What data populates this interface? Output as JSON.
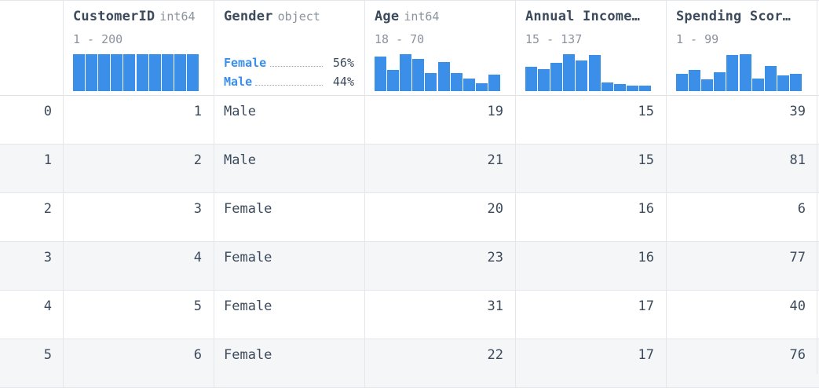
{
  "columns": [
    {
      "name": "CustomerID",
      "dtype": "int64",
      "range": "1 - 200",
      "summary_type": "histogram",
      "histogram": [
        1,
        1,
        1,
        1,
        1,
        1,
        1,
        1,
        1,
        1
      ]
    },
    {
      "name": "Gender",
      "dtype": "object",
      "range": "",
      "summary_type": "categories",
      "categories": [
        {
          "label": "Female",
          "pct": "56%"
        },
        {
          "label": "Male",
          "pct": "44%"
        }
      ]
    },
    {
      "name": "Age",
      "dtype": "int64",
      "range": "18 - 70",
      "summary_type": "histogram",
      "histogram": [
        0.93,
        0.58,
        1.0,
        0.88,
        0.49,
        0.79,
        0.49,
        0.33,
        0.21,
        0.44
      ]
    },
    {
      "name": "Annual Income…",
      "dtype": "",
      "range": "15 - 137",
      "summary_type": "histogram",
      "histogram": [
        0.65,
        0.6,
        0.77,
        1.0,
        0.84,
        0.98,
        0.24,
        0.19,
        0.14,
        0.14
      ]
    },
    {
      "name": "Spending Scor…",
      "dtype": "",
      "range": "1 - 99",
      "summary_type": "histogram",
      "histogram": [
        0.47,
        0.58,
        0.31,
        0.51,
        0.98,
        1.0,
        0.35,
        0.69,
        0.42,
        0.47
      ]
    }
  ],
  "rows": [
    {
      "index": "0",
      "values": [
        "1",
        "Male",
        "19",
        "15",
        "39"
      ]
    },
    {
      "index": "1",
      "values": [
        "2",
        "Male",
        "21",
        "15",
        "81"
      ]
    },
    {
      "index": "2",
      "values": [
        "3",
        "Female",
        "20",
        "16",
        "6"
      ]
    },
    {
      "index": "3",
      "values": [
        "4",
        "Female",
        "23",
        "16",
        "77"
      ]
    },
    {
      "index": "4",
      "values": [
        "5",
        "Female",
        "31",
        "17",
        "40"
      ]
    },
    {
      "index": "5",
      "values": [
        "6",
        "Female",
        "22",
        "17",
        "76"
      ]
    }
  ],
  "colors": {
    "accent": "#3b8fe9",
    "text": "#3c4a5c",
    "muted": "#8a939e",
    "stripe": "#f5f6f8",
    "border": "#e3e6ea"
  }
}
